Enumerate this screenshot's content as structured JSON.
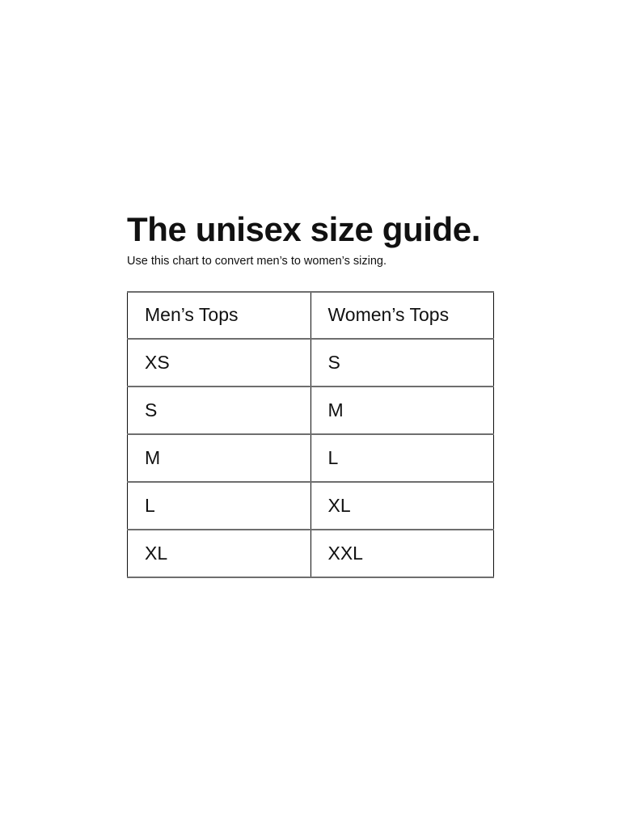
{
  "page": {
    "title": "The unisex size guide.",
    "subtitle": "Use this chart to convert men’s to women’s sizing."
  },
  "chart_data": {
    "type": "table",
    "title": "The unisex size guide.",
    "subtitle": "Use this chart to convert men’s to women’s sizing.",
    "columns": [
      "Men’s Tops",
      "Women’s Tops"
    ],
    "rows": [
      [
        "XS",
        "S"
      ],
      [
        "S",
        "M"
      ],
      [
        "M",
        "L"
      ],
      [
        "L",
        "XL"
      ],
      [
        "XL",
        "XXL"
      ]
    ]
  },
  "colors": {
    "background": "#ffffff",
    "text": "#111111",
    "border_horizontal": "#6e6e6e",
    "border_vertical": "#0f0f0f"
  }
}
